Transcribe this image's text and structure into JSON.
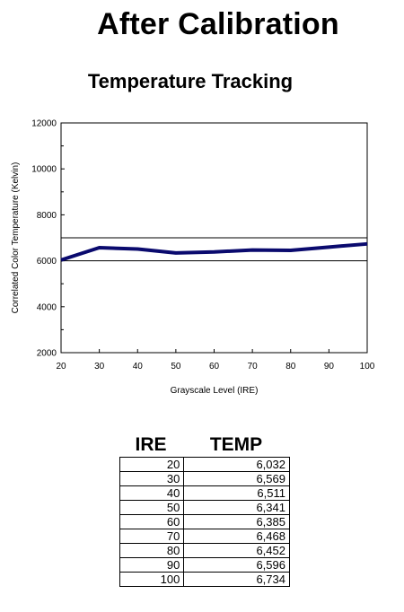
{
  "page": {
    "title": "After Calibration"
  },
  "chart_data": {
    "type": "line",
    "title": "Temperature Tracking",
    "xlabel": "Grayscale Level (IRE)",
    "ylabel": "Correlated Color Temperature (Kelvin)",
    "x": [
      20,
      30,
      40,
      50,
      60,
      70,
      80,
      90,
      100
    ],
    "series": [
      {
        "values": [
          6032,
          6569,
          6511,
          6341,
          6385,
          6468,
          6452,
          6596,
          6734
        ],
        "color": "#0a0a6e"
      }
    ],
    "reference_lines": [
      6000,
      7000
    ],
    "xlim": [
      20,
      100
    ],
    "ylim": [
      2000,
      12000
    ],
    "x_ticks": [
      "20",
      "30",
      "40",
      "50",
      "60",
      "70",
      "80",
      "90",
      "100"
    ],
    "y_ticks": [
      "2000",
      "4000",
      "6000",
      "8000",
      "10000",
      "12000"
    ],
    "grid": false,
    "legend": false
  },
  "table": {
    "headers": [
      "IRE",
      "TEMP"
    ],
    "rows": [
      [
        "20",
        "6,032"
      ],
      [
        "30",
        "6,569"
      ],
      [
        "40",
        "6,511"
      ],
      [
        "50",
        "6,341"
      ],
      [
        "60",
        "6,385"
      ],
      [
        "70",
        "6,468"
      ],
      [
        "80",
        "6,452"
      ],
      [
        "90",
        "6,596"
      ],
      [
        "100",
        "6,734"
      ]
    ]
  }
}
